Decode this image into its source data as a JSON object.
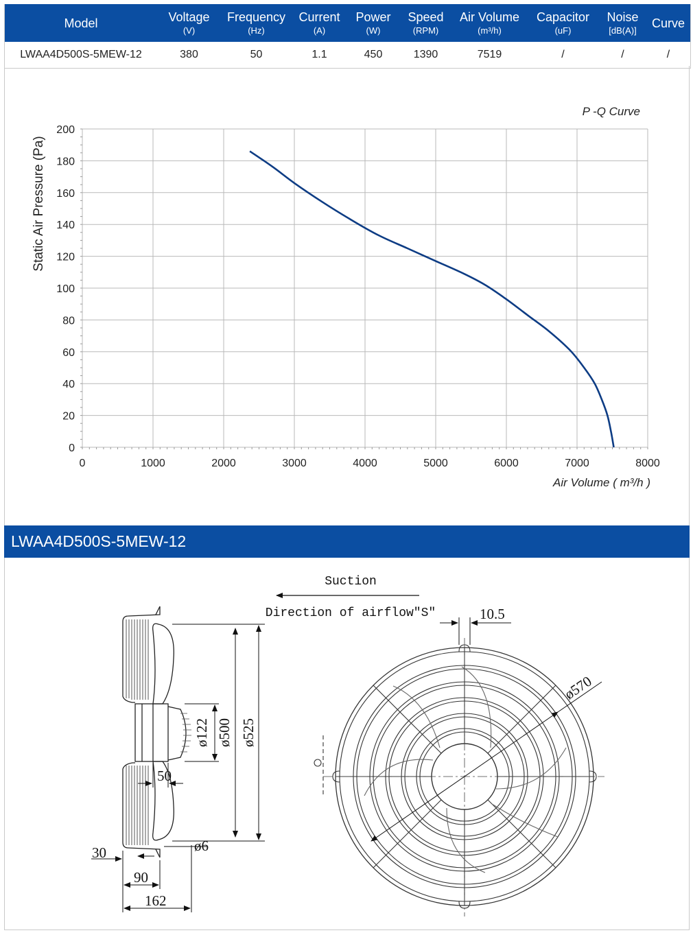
{
  "spec_table": {
    "headers": [
      {
        "label": "Model",
        "unit": ""
      },
      {
        "label": "Voltage",
        "unit": "(V)"
      },
      {
        "label": "Frequency",
        "unit": "(Hz)"
      },
      {
        "label": "Current",
        "unit": "(A)"
      },
      {
        "label": "Power",
        "unit": "(W)"
      },
      {
        "label": "Speed",
        "unit": "(RPM)"
      },
      {
        "label": "Air Volume",
        "unit": "(m³/h)"
      },
      {
        "label": "Capacitor",
        "unit": "(uF)"
      },
      {
        "label": "Noise",
        "unit": "[dB(A)]"
      },
      {
        "label": "Curve",
        "unit": ""
      }
    ],
    "row": [
      "LWAA4D500S-5MEW-12",
      "380",
      "50",
      "1.1",
      "450",
      "1390",
      "7519",
      "/",
      "/",
      "/"
    ]
  },
  "chart_data": {
    "type": "line",
    "title": "P -Q Curve",
    "xlabel": "Air Volume ( m³/h )",
    "ylabel": "Static Air Pressure  (Pa)",
    "xlim": [
      0,
      8000
    ],
    "ylim": [
      0,
      200
    ],
    "xticks": [
      "0",
      "1000",
      "2000",
      "3000",
      "4000",
      "5000",
      "6000",
      "7000",
      "8000"
    ],
    "yticks": [
      "0",
      "20",
      "40",
      "60",
      "80",
      "100",
      "120",
      "140",
      "160",
      "180",
      "200"
    ],
    "grid": true,
    "series": [
      {
        "color": "#0d3c84",
        "x": [
          2370,
          2700,
          3000,
          3400,
          3800,
          4200,
          4600,
          5000,
          5400,
          5700,
          6000,
          6300,
          6600,
          6900,
          7100,
          7250,
          7350,
          7430,
          7480,
          7519
        ],
        "y": [
          186,
          176,
          166,
          154,
          143,
          133,
          125,
          117,
          109,
          102,
          93,
          83,
          73,
          61,
          50,
          40,
          30,
          20,
          10,
          0
        ]
      }
    ]
  },
  "section": {
    "title": "LWAA4D500S-5MEW-12"
  },
  "drawing": {
    "suction": "Suction",
    "airflow": "Direction of airflow\"S\"",
    "dims": {
      "d122": "ø122",
      "d500": "ø500",
      "d525": "ø525",
      "d6": "ø6",
      "w50": "50",
      "w30": "30",
      "w90": "90",
      "w162": "162",
      "w10_5": "10.5",
      "d570": "ø570"
    }
  }
}
